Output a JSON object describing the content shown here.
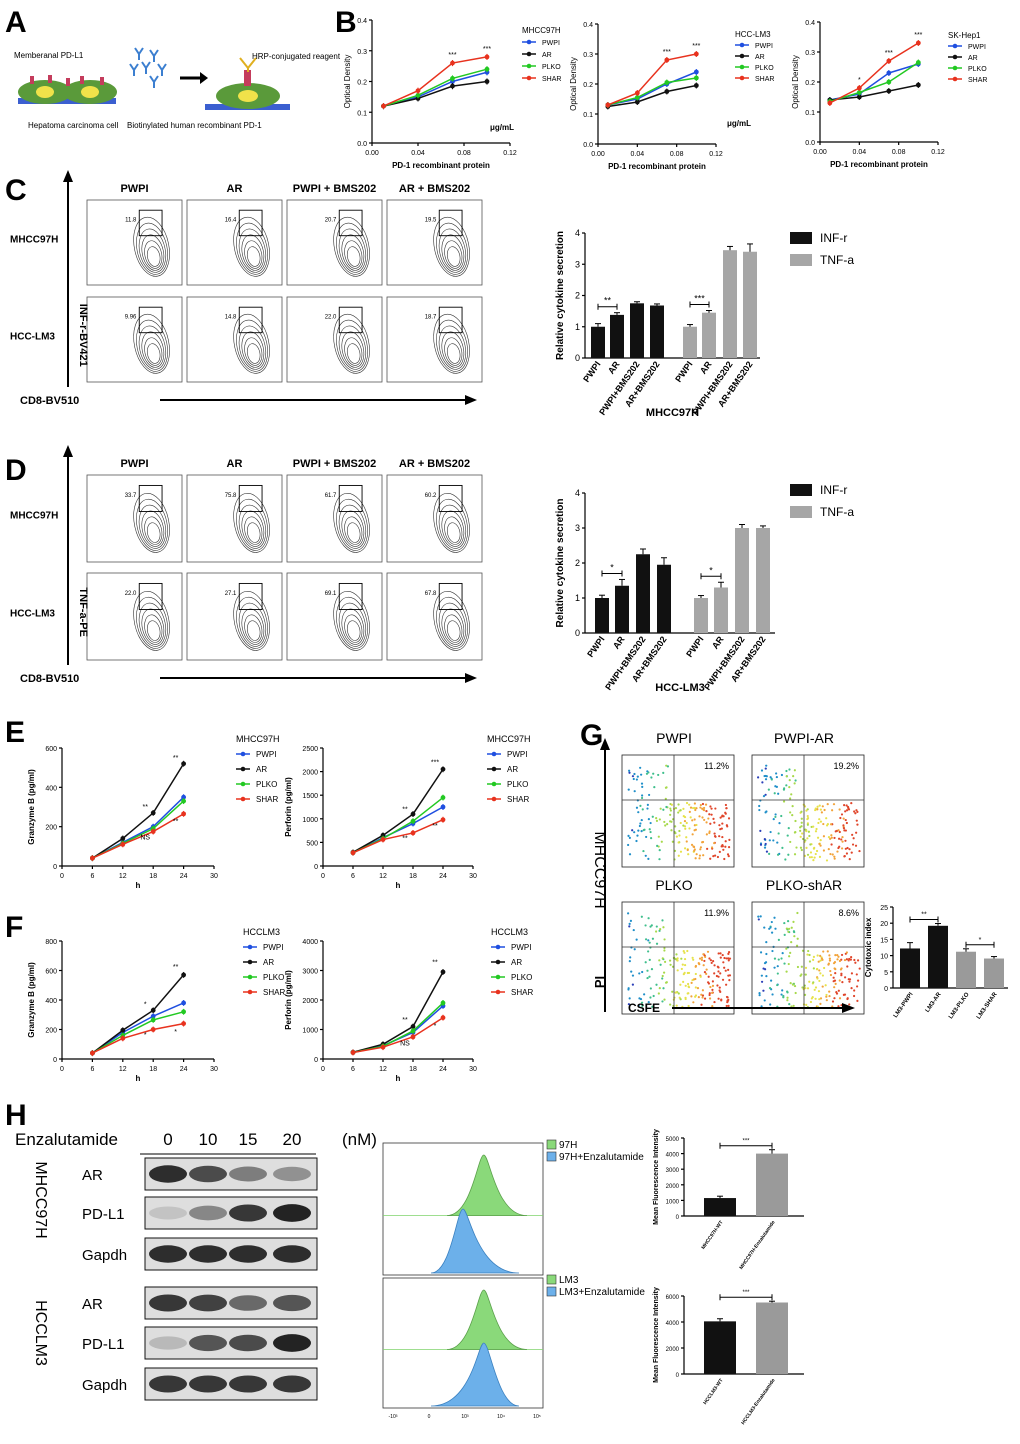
{
  "panels": {
    "A": {
      "letter": "A",
      "membrane_label": "Memberanal PD-L1",
      "cell_label": "Hepatoma carcinoma cell",
      "reagent_label": "Biotinylated human recombinant PD-1",
      "hrp_label": "HRP-conjugated reagent"
    },
    "B": {
      "letter": "B",
      "xlabel": "PD-1 recombinant protein",
      "ylabel": "Optical Density",
      "unit": "μg/mL",
      "legend": [
        "PWPI",
        "AR",
        "PLKO",
        "SHAR"
      ],
      "colors": {
        "PWPI": "#1f4fe0",
        "AR": "#111111",
        "PLKO": "#22c922",
        "SHAR": "#e8321e"
      }
    },
    "C": {
      "letter": "C",
      "cols": [
        "PWPI",
        "AR",
        "PWPI + BMS202",
        "AR + BMS202"
      ],
      "rows": [
        "MHCC97H",
        "HCC-LM3"
      ],
      "gate_values": [
        [
          "11.8",
          "16.4",
          "20.7",
          "19.5"
        ],
        [
          "9.96",
          "14.8",
          "22.0",
          "18.7"
        ]
      ],
      "y_axis": "INF-r-BV421",
      "x_axis": "CD8-BV510"
    },
    "D": {
      "letter": "D",
      "cols": [
        "PWPI",
        "AR",
        "PWPI + BMS202",
        "AR + BMS202"
      ],
      "rows": [
        "MHCC97H",
        "HCC-LM3"
      ],
      "gate_values": [
        [
          "33.7",
          "75.8",
          "61.7",
          "60.2"
        ],
        [
          "22.0",
          "27.1",
          "69.1",
          "67.8"
        ]
      ],
      "y_axis": "TNF-a-PE",
      "x_axis": "CD8-BV510"
    },
    "E": {
      "letter": "E",
      "cell": "MHCC97H"
    },
    "F": {
      "letter": "F",
      "cell": "HCCLM3"
    },
    "G": {
      "letter": "G",
      "titles": [
        "PWPI",
        "PWPI-AR",
        "PLKO",
        "PLKO-shAR"
      ],
      "percents": [
        "11.2%",
        "19.2%",
        "11.9%",
        "8.6%"
      ],
      "row_label": "MHCC97H",
      "y_axis": "PI",
      "x_axis": "CSFE"
    },
    "H": {
      "letter": "H",
      "drug": "Enzalutamide",
      "doses": [
        "0",
        "10",
        "15",
        "20"
      ],
      "unit": "(nM)",
      "cells": [
        "MHCC97H",
        "HCCLM3"
      ],
      "bands": [
        "AR",
        "PD-L1",
        "Gapdh"
      ],
      "hist_legends": [
        [
          "97H",
          "97H+Enzalutamide"
        ],
        [
          "LM3",
          "LM3+Enzalutamide"
        ]
      ],
      "hist_ticks": [
        "-10³",
        "0",
        "10³",
        "10⁴",
        "10⁵"
      ]
    }
  },
  "chart_data": [
    {
      "id": "B1",
      "type": "line",
      "title": "MHCC97H",
      "x": [
        0.01,
        0.04,
        0.07,
        0.1
      ],
      "xlim": [
        0,
        0.12
      ],
      "ylim": [
        0,
        0.4
      ],
      "xticks": [
        "0.00",
        "0.04",
        "0.08",
        "0.12"
      ],
      "yticks": [
        "0.0",
        "0.1",
        "0.2",
        "0.3",
        "0.4"
      ],
      "ylabel": "Optical Density",
      "xlabel": "PD-1 recombinant protein",
      "series": [
        {
          "name": "PWPI",
          "values": [
            0.12,
            0.15,
            0.2,
            0.23
          ]
        },
        {
          "name": "AR",
          "values": [
            0.12,
            0.145,
            0.185,
            0.2
          ]
        },
        {
          "name": "PLKO",
          "values": [
            0.12,
            0.155,
            0.21,
            0.24
          ]
        },
        {
          "name": "SHAR",
          "values": [
            0.12,
            0.17,
            0.26,
            0.28
          ]
        }
      ],
      "annotations": [
        {
          "x": 0.07,
          "text": "***"
        },
        {
          "x": 0.1,
          "text": "***"
        }
      ]
    },
    {
      "id": "B2",
      "type": "line",
      "title": "HCC-LM3",
      "x": [
        0.01,
        0.04,
        0.07,
        0.1
      ],
      "xlim": [
        0,
        0.12
      ],
      "ylim": [
        0,
        0.4
      ],
      "xticks": [
        "0.00",
        "0.04",
        "0.08",
        "0.12"
      ],
      "yticks": [
        "0.0",
        "0.1",
        "0.2",
        "0.3",
        "0.4"
      ],
      "ylabel": "Optical Density",
      "xlabel": "PD-1 recombinant protein",
      "series": [
        {
          "name": "PWPI",
          "values": [
            0.13,
            0.15,
            0.2,
            0.24
          ]
        },
        {
          "name": "AR",
          "values": [
            0.125,
            0.14,
            0.175,
            0.195
          ]
        },
        {
          "name": "PLKO",
          "values": [
            0.13,
            0.155,
            0.205,
            0.22
          ]
        },
        {
          "name": "SHAR",
          "values": [
            0.13,
            0.17,
            0.28,
            0.3
          ]
        }
      ],
      "annotations": [
        {
          "x": 0.07,
          "text": "***"
        },
        {
          "x": 0.1,
          "text": "***"
        }
      ]
    },
    {
      "id": "B3",
      "type": "line",
      "title": "SK-Hep1",
      "x": [
        0.01,
        0.04,
        0.07,
        0.1
      ],
      "xlim": [
        0,
        0.12
      ],
      "ylim": [
        0,
        0.4
      ],
      "xticks": [
        "0.00",
        "0.04",
        "0.08",
        "0.12"
      ],
      "yticks": [
        "0.0",
        "0.1",
        "0.2",
        "0.3",
        "0.4"
      ],
      "ylabel": "Optical Density",
      "xlabel": "PD-1 recombinant protein",
      "series": [
        {
          "name": "PWPI",
          "values": [
            0.14,
            0.16,
            0.23,
            0.26
          ]
        },
        {
          "name": "AR",
          "values": [
            0.14,
            0.15,
            0.17,
            0.19
          ]
        },
        {
          "name": "PLKO",
          "values": [
            0.135,
            0.165,
            0.2,
            0.265
          ]
        },
        {
          "name": "SHAR",
          "values": [
            0.13,
            0.18,
            0.27,
            0.33
          ]
        }
      ],
      "annotations": [
        {
          "x": 0.04,
          "text": "*"
        },
        {
          "x": 0.07,
          "text": "***"
        },
        {
          "x": 0.1,
          "text": "***"
        }
      ]
    },
    {
      "id": "C_bar",
      "type": "bar",
      "categories": [
        "PWPI",
        "AR",
        "PWPI+BMS202",
        "AR+BMS202",
        "PWPI",
        "AR",
        "PWPI+BMS202",
        "AR+BMS202"
      ],
      "values": [
        1.0,
        1.38,
        1.75,
        1.68,
        1.0,
        1.45,
        3.45,
        3.4
      ],
      "errors": [
        0.1,
        0.07,
        0.05,
        0.05,
        0.07,
        0.07,
        0.12,
        0.25
      ],
      "groups": [
        "INF-r",
        "INF-r",
        "INF-r",
        "INF-r",
        "TNF-a",
        "TNF-a",
        "TNF-a",
        "TNF-a"
      ],
      "ylim": [
        0,
        4
      ],
      "yticks": [
        "0",
        "1",
        "2",
        "3",
        "4"
      ],
      "ylabel": "Relative cytokine secretion",
      "xlabel": "MHCC97H",
      "legend": [
        "INF-r",
        "TNF-a"
      ],
      "sig": [
        {
          "a": 0,
          "b": 1,
          "text": "**"
        },
        {
          "a": 4,
          "b": 5,
          "text": "***"
        }
      ]
    },
    {
      "id": "D_bar",
      "type": "bar",
      "categories": [
        "PWPI",
        "AR",
        "PWPI+BMS202",
        "AR+BMS202",
        "PWPI",
        "AR",
        "PWPI+BMS202",
        "AR+BMS202"
      ],
      "values": [
        1.0,
        1.35,
        2.25,
        1.95,
        1.0,
        1.3,
        3.0,
        3.0
      ],
      "errors": [
        0.08,
        0.18,
        0.15,
        0.2,
        0.07,
        0.15,
        0.1,
        0.06
      ],
      "groups": [
        "INF-r",
        "INF-r",
        "INF-r",
        "INF-r",
        "TNF-a",
        "TNF-a",
        "TNF-a",
        "TNF-a"
      ],
      "ylim": [
        0,
        4
      ],
      "yticks": [
        "0",
        "1",
        "2",
        "3",
        "4"
      ],
      "ylabel": "Relative cytokine secretion",
      "xlabel": "HCC-LM3",
      "legend": [
        "INF-r",
        "TNF-a"
      ],
      "sig": [
        {
          "a": 0,
          "b": 1,
          "text": "*"
        },
        {
          "a": 4,
          "b": 5,
          "text": "*"
        }
      ]
    },
    {
      "id": "E1",
      "type": "line",
      "title": "MHCC97H",
      "x": [
        6,
        12,
        18,
        24
      ],
      "xlim": [
        0,
        30
      ],
      "ylim": [
        0,
        600
      ],
      "xticks": [
        "0",
        "6",
        "12",
        "18",
        "24",
        "30"
      ],
      "yticks": [
        "0",
        "200",
        "400",
        "600"
      ],
      "ylabel": "Granzyme B (pg/ml)",
      "xlabel": "h",
      "series": [
        {
          "name": "PWPI",
          "values": [
            40,
            120,
            200,
            350
          ]
        },
        {
          "name": "AR",
          "values": [
            40,
            140,
            270,
            520
          ]
        },
        {
          "name": "PLKO",
          "values": [
            40,
            115,
            190,
            330
          ]
        },
        {
          "name": "SHAR",
          "values": [
            40,
            110,
            175,
            265
          ]
        }
      ],
      "annotations": [
        {
          "x": 18,
          "y": 290,
          "text": "**"
        },
        {
          "x": 24,
          "y": 540,
          "text": "**"
        },
        {
          "x": 18,
          "y": 135,
          "text": "NS"
        },
        {
          "x": 24,
          "y": 215,
          "text": "**"
        }
      ]
    },
    {
      "id": "E2",
      "type": "line",
      "title": "MHCC97H",
      "x": [
        6,
        12,
        18,
        24
      ],
      "xlim": [
        0,
        30
      ],
      "ylim": [
        0,
        2500
      ],
      "xticks": [
        "0",
        "6",
        "12",
        "18",
        "24",
        "30"
      ],
      "yticks": [
        "0",
        "500",
        "1000",
        "1500",
        "2000",
        "2500"
      ],
      "ylabel": "Perforin (pg/ml)",
      "xlabel": "h",
      "series": [
        {
          "name": "PWPI",
          "values": [
            280,
            600,
            900,
            1250
          ]
        },
        {
          "name": "AR",
          "values": [
            290,
            650,
            1100,
            2050
          ]
        },
        {
          "name": "PLKO",
          "values": [
            280,
            580,
            950,
            1450
          ]
        },
        {
          "name": "SHAR",
          "values": [
            280,
            560,
            700,
            980
          ]
        }
      ],
      "annotations": [
        {
          "x": 18,
          "y": 1150,
          "text": "**"
        },
        {
          "x": 24,
          "y": 2150,
          "text": "***"
        },
        {
          "x": 18,
          "y": 540,
          "text": "**"
        },
        {
          "x": 24,
          "y": 800,
          "text": "**"
        }
      ]
    },
    {
      "id": "F1",
      "type": "line",
      "title": "HCCLM3",
      "x": [
        6,
        12,
        18,
        24
      ],
      "xlim": [
        0,
        30
      ],
      "ylim": [
        0,
        800
      ],
      "xticks": [
        "0",
        "6",
        "12",
        "18",
        "24",
        "30"
      ],
      "yticks": [
        "0",
        "200",
        "400",
        "600",
        "800"
      ],
      "ylabel": "Granzyme B (pg/ml)",
      "xlabel": "h",
      "series": [
        {
          "name": "PWPI",
          "values": [
            40,
            180,
            290,
            380
          ]
        },
        {
          "name": "AR",
          "values": [
            40,
            195,
            330,
            570
          ]
        },
        {
          "name": "PLKO",
          "values": [
            40,
            160,
            265,
            320
          ]
        },
        {
          "name": "SHAR",
          "values": [
            40,
            140,
            200,
            240
          ]
        }
      ],
      "annotations": [
        {
          "x": 18,
          "y": 355,
          "text": "*"
        },
        {
          "x": 24,
          "y": 610,
          "text": "**"
        },
        {
          "x": 18,
          "y": 150,
          "text": "*"
        },
        {
          "x": 24,
          "y": 170,
          "text": "*"
        }
      ]
    },
    {
      "id": "F2",
      "type": "line",
      "title": "HCCLM3",
      "x": [
        6,
        12,
        18,
        24
      ],
      "xlim": [
        0,
        30
      ],
      "ylim": [
        0,
        4000
      ],
      "xticks": [
        "0",
        "6",
        "12",
        "18",
        "24",
        "30"
      ],
      "yticks": [
        "0",
        "1000",
        "2000",
        "3000",
        "4000"
      ],
      "ylabel": "Perforin (pg/ml)",
      "xlabel": "h",
      "series": [
        {
          "name": "PWPI",
          "values": [
            220,
            450,
            900,
            1800
          ]
        },
        {
          "name": "AR",
          "values": [
            230,
            500,
            1100,
            2950
          ]
        },
        {
          "name": "PLKO",
          "values": [
            220,
            430,
            950,
            1900
          ]
        },
        {
          "name": "SHAR",
          "values": [
            220,
            400,
            750,
            1400
          ]
        }
      ],
      "annotations": [
        {
          "x": 18,
          "y": 1250,
          "text": "**"
        },
        {
          "x": 24,
          "y": 3200,
          "text": "**"
        },
        {
          "x": 18,
          "y": 450,
          "text": "NS"
        },
        {
          "x": 24,
          "y": 1050,
          "text": "*"
        }
      ]
    },
    {
      "id": "G_bar",
      "type": "bar",
      "categories": [
        "LM3-PWPI",
        "LM3-AR",
        "LM3-PLKO",
        "LM3-SHAR"
      ],
      "values": [
        12.2,
        19.2,
        11.2,
        9.1
      ],
      "errors": [
        1.8,
        0.7,
        0.9,
        0.6
      ],
      "colors": [
        "#111111",
        "#111111",
        "#9a9a9a",
        "#9a9a9a"
      ],
      "ylim": [
        0,
        25
      ],
      "yticks": [
        "0",
        "5",
        "10",
        "15",
        "20",
        "25"
      ],
      "ylabel": "Cytotoxic index",
      "sig": [
        {
          "a": 0,
          "b": 1,
          "text": "**"
        },
        {
          "a": 2,
          "b": 3,
          "text": "*"
        }
      ]
    },
    {
      "id": "H_bar1",
      "type": "bar",
      "categories": [
        "MHCC97H-WT",
        "MHCC97H-Enzalutamide"
      ],
      "values": [
        1150,
        4000
      ],
      "errors": [
        120,
        250
      ],
      "colors": [
        "#111111",
        "#9a9a9a"
      ],
      "ylim": [
        0,
        5000
      ],
      "yticks": [
        "0",
        "1000",
        "2000",
        "3000",
        "4000",
        "5000"
      ],
      "ylabel": "Mean Fluorescence Intensity",
      "sig": [
        {
          "a": 0,
          "b": 1,
          "text": "***"
        }
      ]
    },
    {
      "id": "H_bar2",
      "type": "bar",
      "categories": [
        "HCCLM3-WT",
        "HCCLM3-Enzalutamide"
      ],
      "values": [
        4050,
        5500
      ],
      "errors": [
        200,
        100
      ],
      "colors": [
        "#111111",
        "#9a9a9a"
      ],
      "ylim": [
        0,
        6000
      ],
      "yticks": [
        "0",
        "2000",
        "4000",
        "6000"
      ],
      "ylabel": "Mean Fluorescence Intensity",
      "sig": [
        {
          "a": 0,
          "b": 1,
          "text": "***"
        }
      ]
    }
  ]
}
